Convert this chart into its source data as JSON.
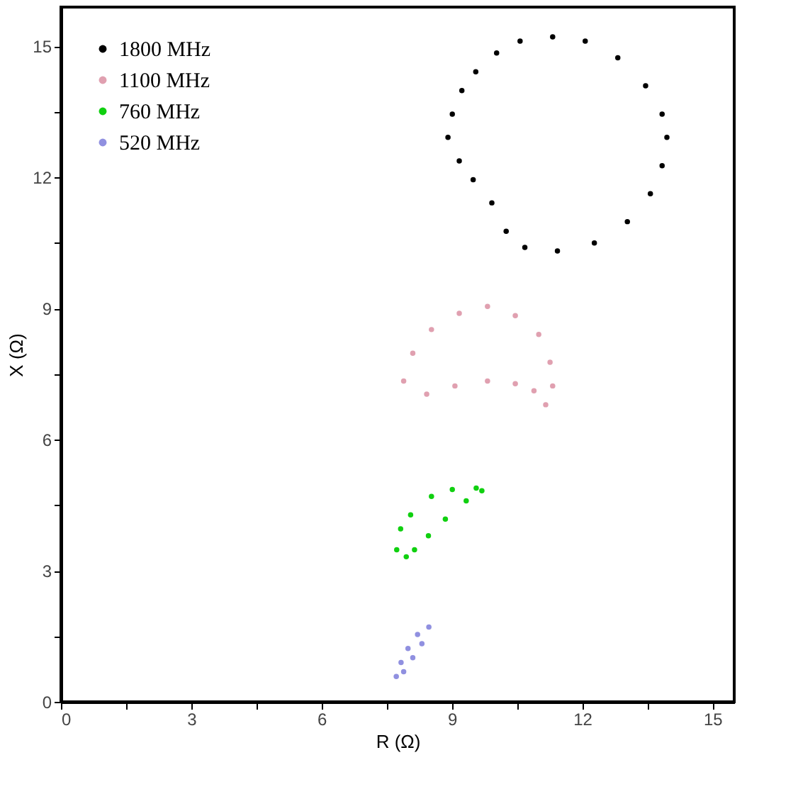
{
  "chart_data": {
    "type": "scatter",
    "xlabel": "R (Ω)",
    "ylabel": "X (Ω)",
    "xlim": [
      0,
      15.5
    ],
    "ylim": [
      0,
      15.9
    ],
    "xticks": [
      0,
      {
        "value": 1.5,
        "label": null
      },
      3,
      {
        "value": 4.5,
        "label": null
      },
      6,
      {
        "value": 7.5,
        "label": null
      },
      9,
      {
        "value": 10.5,
        "label": null
      },
      12,
      {
        "value": 13.5,
        "label": null
      },
      15
    ],
    "yticks": [
      0,
      {
        "value": 1.5,
        "label": null
      },
      3,
      {
        "value": 4.5,
        "label": null
      },
      6,
      {
        "value": 7.5,
        "label": null
      },
      9,
      {
        "value": 10.5,
        "label": null
      },
      12,
      {
        "value": 13.5,
        "label": null
      },
      15
    ],
    "grid": false,
    "legend": "top left",
    "marker": "circle",
    "series": [
      {
        "name": "1800 MHz",
        "color": "#000000",
        "x": [
          8.91,
          9.01,
          9.23,
          9.55,
          10.03,
          10.57,
          11.32,
          12.07,
          12.82,
          13.46,
          13.84,
          13.95,
          13.84,
          13.57,
          13.04,
          12.28,
          11.43,
          10.68,
          10.25,
          9.92,
          9.49,
          9.17
        ],
        "values": [
          12.92,
          13.45,
          13.99,
          14.42,
          14.85,
          15.12,
          15.22,
          15.12,
          14.74,
          14.1,
          13.45,
          12.92,
          12.27,
          11.63,
          10.99,
          10.5,
          10.32,
          10.4,
          10.77,
          11.42,
          11.95,
          12.38
        ]
      },
      {
        "name": "1100 MHz",
        "color": "#e0a0b0",
        "x": [
          7.89,
          8.1,
          8.53,
          9.17,
          9.82,
          10.46,
          11.0,
          11.26,
          11.32,
          11.16,
          10.89,
          10.46,
          9.82,
          9.07,
          8.42
        ],
        "values": [
          7.34,
          7.98,
          8.52,
          8.89,
          9.05,
          8.84,
          8.41,
          7.77,
          7.23,
          6.8,
          7.12,
          7.28,
          7.34,
          7.23,
          7.04
        ]
      },
      {
        "name": "760 MHz",
        "color": "#10d010",
        "x": [
          7.73,
          7.82,
          8.05,
          8.53,
          9.01,
          9.56,
          9.69,
          9.33,
          8.85,
          8.46,
          8.14,
          7.95
        ],
        "values": [
          3.48,
          3.96,
          4.28,
          4.7,
          4.86,
          4.89,
          4.83,
          4.6,
          4.18,
          3.8,
          3.48,
          3.32
        ]
      },
      {
        "name": "520 MHz",
        "color": "#9090e0",
        "x": [
          7.72,
          7.83,
          7.99,
          8.21,
          8.47,
          8.31,
          8.1,
          7.89
        ],
        "values": [
          0.58,
          0.9,
          1.22,
          1.54,
          1.71,
          1.33,
          1.01,
          0.69
        ]
      }
    ]
  }
}
